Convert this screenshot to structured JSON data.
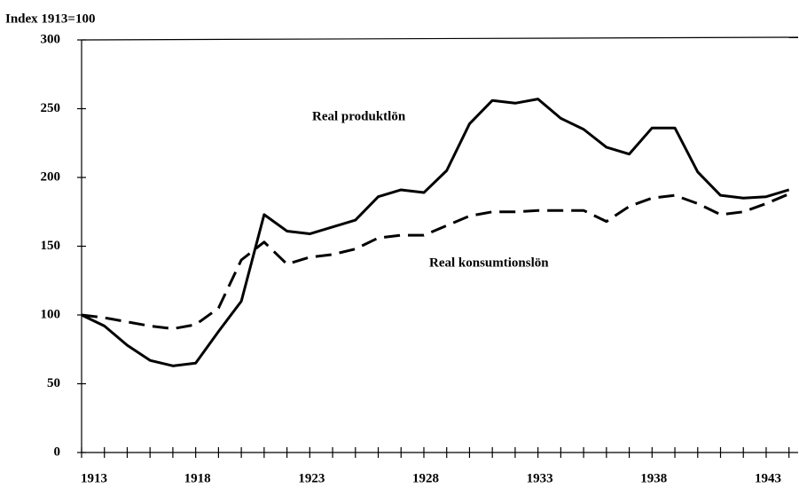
{
  "chart_data": {
    "type": "line",
    "ylabel": "Index 1913=100",
    "x": [
      1913,
      1914,
      1915,
      1916,
      1917,
      1918,
      1919,
      1920,
      1921,
      1922,
      1923,
      1924,
      1925,
      1926,
      1927,
      1928,
      1929,
      1930,
      1931,
      1932,
      1933,
      1934,
      1935,
      1936,
      1937,
      1938,
      1939,
      1940,
      1941,
      1942,
      1943,
      1944
    ],
    "series": [
      {
        "name": "Real produktlön",
        "color": "#000000",
        "dash": false,
        "values": [
          100,
          92,
          78,
          67,
          63,
          65,
          88,
          110,
          173,
          161,
          159,
          164,
          169,
          186,
          191,
          189,
          205,
          239,
          256,
          254,
          257,
          243,
          235,
          222,
          217,
          236,
          236,
          204,
          187,
          185,
          186,
          191
        ]
      },
      {
        "name": "Real konsumtionslön",
        "color": "#000000",
        "dash": true,
        "values": [
          100,
          98,
          95,
          92,
          90,
          93,
          105,
          140,
          153,
          137,
          142,
          144,
          148,
          156,
          158,
          158,
          165,
          172,
          175,
          175,
          176,
          176,
          176,
          168,
          179,
          185,
          187,
          181,
          173,
          175,
          181,
          188
        ]
      }
    ],
    "xlim": [
      1913,
      1944.4
    ],
    "ylim": [
      0,
      300
    ],
    "xticks": [
      1913,
      1918,
      1923,
      1928,
      1933,
      1938,
      1943
    ],
    "xminor_ticks": [
      1913,
      1914,
      1915,
      1916,
      1917,
      1918,
      1919,
      1920,
      1921,
      1922,
      1923,
      1924,
      1925,
      1926,
      1927,
      1928,
      1929,
      1930,
      1931,
      1932,
      1933,
      1934,
      1935,
      1936,
      1937,
      1938,
      1939,
      1940,
      1941,
      1942,
      1943,
      1944
    ],
    "yticks": [
      0,
      50,
      100,
      150,
      200,
      250,
      300
    ],
    "grid": false
  }
}
